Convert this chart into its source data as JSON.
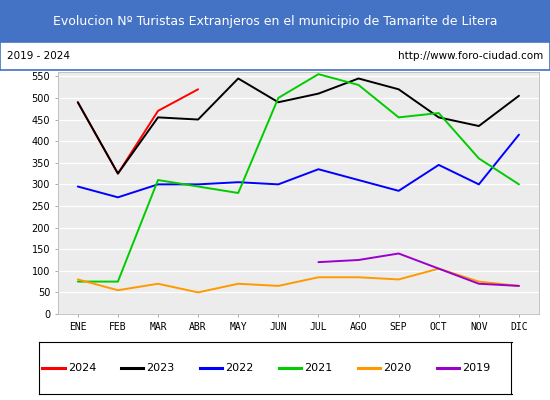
{
  "title": "Evolucion Nº Turistas Extranjeros en el municipio de Tamarite de Litera",
  "subtitle_left": "2019 - 2024",
  "subtitle_right": "http://www.foro-ciudad.com",
  "months": [
    "ENE",
    "FEB",
    "MAR",
    "ABR",
    "MAY",
    "JUN",
    "JUL",
    "AGO",
    "SEP",
    "OCT",
    "NOV",
    "DIC"
  ],
  "series": {
    "2024": {
      "color": "#ff0000",
      "data": [
        490,
        325,
        470,
        520,
        null,
        null,
        null,
        null,
        null,
        null,
        null,
        null
      ]
    },
    "2023": {
      "color": "#000000",
      "data": [
        490,
        325,
        455,
        450,
        545,
        490,
        510,
        545,
        520,
        455,
        435,
        505
      ]
    },
    "2022": {
      "color": "#0000ff",
      "data": [
        295,
        270,
        300,
        300,
        305,
        300,
        335,
        310,
        285,
        345,
        300,
        415
      ]
    },
    "2021": {
      "color": "#00cc00",
      "data": [
        75,
        75,
        310,
        295,
        280,
        500,
        555,
        530,
        455,
        465,
        360,
        300
      ]
    },
    "2020": {
      "color": "#ff9900",
      "data": [
        80,
        55,
        70,
        50,
        70,
        65,
        85,
        85,
        80,
        105,
        75,
        65
      ]
    },
    "2019": {
      "color": "#9900cc",
      "data": [
        null,
        null,
        null,
        null,
        null,
        null,
        120,
        125,
        140,
        105,
        70,
        65
      ]
    }
  },
  "ylim": [
    0,
    560
  ],
  "yticks": [
    0,
    50,
    100,
    150,
    200,
    250,
    300,
    350,
    400,
    450,
    500,
    550
  ],
  "title_bg_color": "#4472c4",
  "title_fg_color": "#ffffff",
  "plot_bg_color": "#ececec",
  "subtitle_bg_color": "#ffffff",
  "grid_color": "#ffffff",
  "border_color": "#4472c4",
  "legend_entries": [
    [
      "2024",
      "#ff0000"
    ],
    [
      "2023",
      "#000000"
    ],
    [
      "2022",
      "#0000ff"
    ],
    [
      "2021",
      "#00cc00"
    ],
    [
      "2020",
      "#ff9900"
    ],
    [
      "2019",
      "#9900cc"
    ]
  ]
}
